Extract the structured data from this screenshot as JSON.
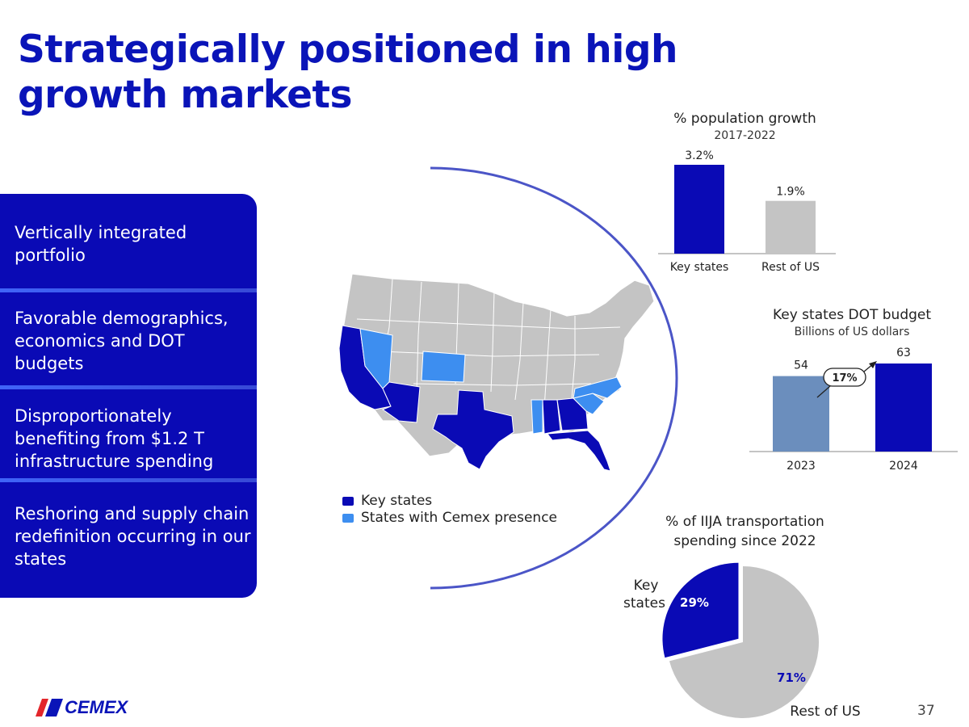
{
  "title": "Strategically positioned in high growth markets",
  "panel": {
    "items": [
      "Vertically integrated portfolio",
      "Favorable demographics, economics and DOT budgets",
      "Disproportionately benefiting from $1.2 T infrastructure spending",
      "Reshoring and supply chain redefinition occurring in our states"
    ]
  },
  "legend": {
    "key_states": "Key states",
    "cemex_presence": "States with Cemex presence"
  },
  "colors": {
    "key_states": "#0a0ab5",
    "cemex_presence": "#3d8ef0",
    "other_states": "#c4c4c4",
    "title": "#0a14b8"
  },
  "chart_data": [
    {
      "type": "bar",
      "title": "% population growth",
      "subtitle": "2017-2022",
      "categories": [
        "Key states",
        "Rest of US"
      ],
      "values": [
        3.2,
        1.9
      ],
      "value_labels": [
        "3.2%",
        "1.9%"
      ],
      "ylim": [
        0,
        3.2
      ]
    },
    {
      "type": "bar",
      "title": "Key states DOT budget",
      "subtitle": "Billions of US dollars",
      "categories": [
        "2023",
        "2024"
      ],
      "values": [
        54,
        63
      ],
      "value_labels": [
        "54",
        "63"
      ],
      "ylim": [
        0,
        63
      ],
      "annotation": "17%"
    },
    {
      "type": "pie",
      "title": "% of IIJA transportation spending since 2022",
      "categories": [
        "Key states",
        "Rest of US"
      ],
      "values": [
        29,
        71
      ],
      "value_labels": [
        "29%",
        "71%"
      ],
      "category_labels": [
        "Key states",
        "Rest of US"
      ]
    }
  ],
  "footer": {
    "logo_text": "CEMEX",
    "page_number": "37"
  }
}
